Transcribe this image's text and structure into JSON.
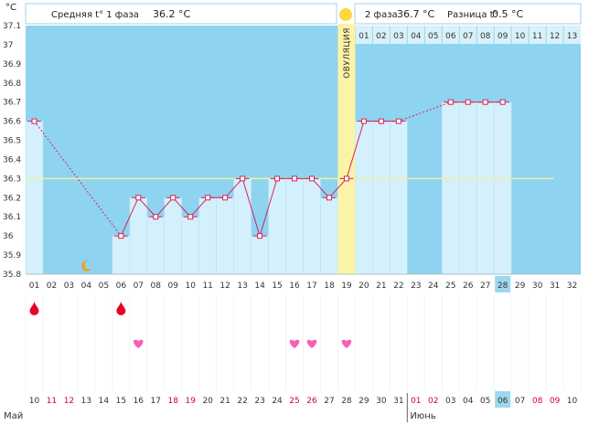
{
  "chart_data": {
    "type": "line",
    "title": "",
    "ylabel": "°C",
    "ylim": [
      35.8,
      37.1
    ],
    "y_ticks": [
      "37.1",
      "37",
      "36.9",
      "36.8",
      "36.7",
      "36.6",
      "36.5",
      "36.4",
      "36.3",
      "36.2",
      "36.1",
      "36",
      "35.9",
      "35.8"
    ],
    "header": {
      "phase1_label": "Средняя t° 1 фаза",
      "phase1_value": "36.2 °C",
      "phase2_label": "2 фаза",
      "phase2_value": "36.7 °C",
      "diff_label": "Разница t°",
      "diff_value": "0.5 °C"
    },
    "ovulation_label": "ОВУЛЯЦИЯ",
    "ovulation_day": 19,
    "phase2_day_labels": [
      "01",
      "02",
      "03",
      "04",
      "05",
      "06",
      "07",
      "08",
      "09",
      "10",
      "11",
      "12",
      "13"
    ],
    "cycle_days": [
      "01",
      "02",
      "03",
      "04",
      "05",
      "06",
      "07",
      "08",
      "09",
      "10",
      "11",
      "12",
      "13",
      "14",
      "15",
      "16",
      "17",
      "18",
      "19",
      "20",
      "21",
      "22",
      "23",
      "24",
      "25",
      "26",
      "27",
      "28",
      "29",
      "30",
      "31",
      "32"
    ],
    "current_day": "28",
    "temperatures": [
      36.6,
      null,
      null,
      null,
      null,
      36.0,
      36.2,
      36.1,
      36.2,
      36.1,
      36.2,
      36.2,
      36.3,
      36.0,
      36.3,
      36.3,
      36.3,
      36.2,
      36.3,
      36.6,
      36.6,
      36.6,
      null,
      null,
      36.7,
      36.7,
      36.7,
      36.7,
      null,
      null,
      null,
      null
    ],
    "average_line": 36.3,
    "moon_day": 4,
    "menstruation_days": [
      1,
      6
    ],
    "intercourse_days": [
      7,
      16,
      17,
      19
    ],
    "calendar_dates": [
      "10",
      "11",
      "12",
      "13",
      "14",
      "15",
      "16",
      "17",
      "18",
      "19",
      "20",
      "21",
      "22",
      "23",
      "24",
      "25",
      "26",
      "27",
      "28",
      "29",
      "30",
      "31",
      "01",
      "02",
      "03",
      "04",
      "05",
      "06",
      "07",
      "08",
      "09",
      "10"
    ],
    "weekend_indices": [
      1,
      2,
      8,
      9,
      15,
      16,
      22,
      23,
      29,
      30
    ],
    "today_calendar_index": 27,
    "months": [
      {
        "label": "Май",
        "start_index": 0
      },
      {
        "label": "Июнь",
        "start_index": 22
      }
    ],
    "colors": {
      "plot_bg": "#8ed4f0",
      "bar": "#d4f0fc",
      "bar_edge": "#b2e1f5",
      "line": "#d2245c",
      "avg_line": "#f4f0a0",
      "ovulation": "#fbf3a8",
      "sun": "#ffd740",
      "drop": "#e8002a",
      "heart": "#f560b4",
      "moon": "#f0a020",
      "weekend": "#d3003e",
      "current_day_bg": "#9ed8ee"
    }
  }
}
